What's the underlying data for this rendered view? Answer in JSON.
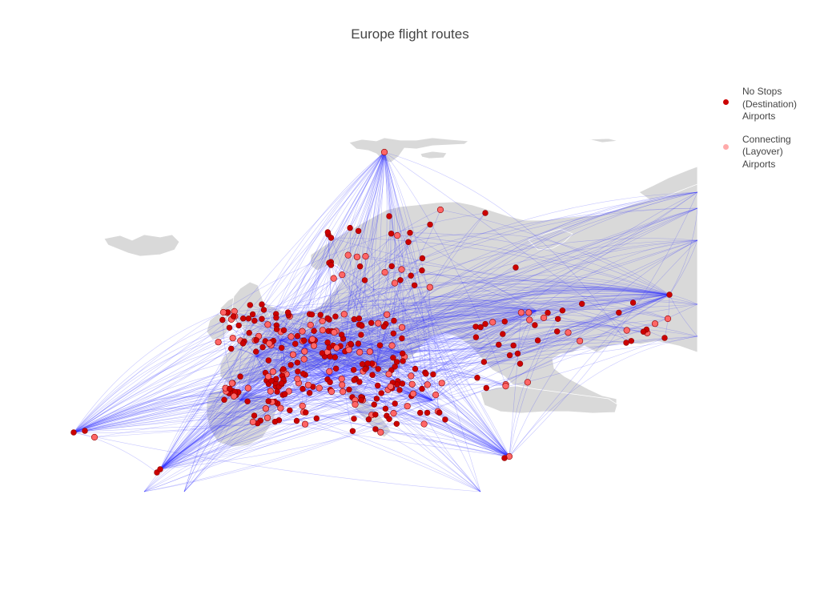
{
  "title": "Europe flight routes",
  "legend": {
    "destination": {
      "label": "No Stops\n(Destination)\nAirports",
      "color": "#cc0000"
    },
    "connecting": {
      "label": "Connecting\n(Layover)\nAirports",
      "color": "#ffaaaa"
    }
  },
  "colors": {
    "land": "#d9d9d9",
    "land_border": "#ffffff",
    "route": "#3333ff",
    "destination_marker": "#cc0000",
    "connecting_marker": "#ff6666",
    "marker_outline": "#8b0000"
  }
}
